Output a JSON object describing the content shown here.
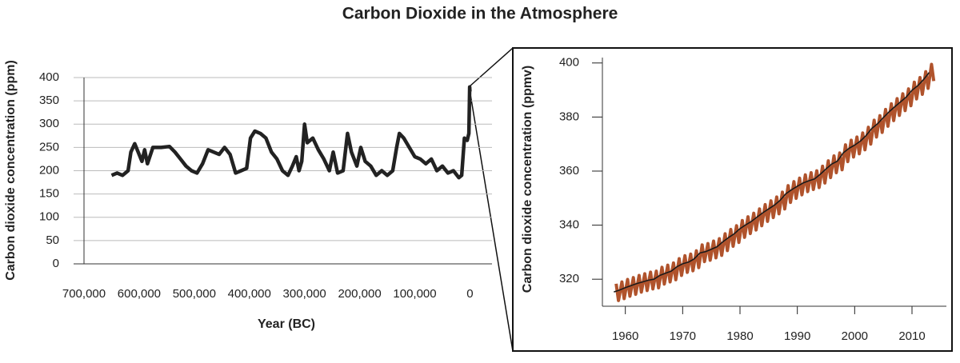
{
  "title": "Carbon Dioxide in the Atmosphere",
  "chart_data": [
    {
      "type": "line",
      "xlabel": "Year (BC)",
      "ylabel": "Carbon dioxide concentration (ppm)",
      "xlim": [
        700000,
        -40000
      ],
      "ylim": [
        0,
        400
      ],
      "xticks": [
        {
          "value": 700000,
          "label": "700,000"
        },
        {
          "value": 600000,
          "label": "600,000"
        },
        {
          "value": 500000,
          "label": "500,000"
        },
        {
          "value": 400000,
          "label": "400,000"
        },
        {
          "value": 300000,
          "label": "300,000"
        },
        {
          "value": 200000,
          "label": "200,000"
        },
        {
          "value": 100000,
          "label": "100,000"
        },
        0
      ],
      "yticks": [
        0,
        50,
        100,
        150,
        200,
        250,
        300,
        350,
        400
      ],
      "grid": true,
      "series": [
        {
          "color": "#222222",
          "x": [
            650000,
            640000,
            630000,
            620000,
            615000,
            608000,
            600000,
            595000,
            590000,
            585000,
            575000,
            560000,
            545000,
            535000,
            525000,
            515000,
            505000,
            495000,
            485000,
            475000,
            465000,
            455000,
            445000,
            435000,
            425000,
            415000,
            405000,
            398000,
            390000,
            380000,
            370000,
            360000,
            350000,
            340000,
            330000,
            322000,
            315000,
            310000,
            305000,
            300000,
            295000,
            285000,
            275000,
            265000,
            255000,
            248000,
            240000,
            230000,
            222000,
            215000,
            205000,
            198000,
            190000,
            180000,
            170000,
            160000,
            150000,
            140000,
            133000,
            128000,
            120000,
            110000,
            100000,
            90000,
            80000,
            70000,
            60000,
            50000,
            40000,
            30000,
            20000,
            15000,
            10000,
            5000,
            2000,
            500,
            0
          ],
          "values": [
            190,
            195,
            190,
            200,
            240,
            258,
            235,
            220,
            245,
            215,
            250,
            250,
            252,
            240,
            225,
            210,
            200,
            195,
            215,
            245,
            240,
            235,
            250,
            235,
            195,
            200,
            205,
            270,
            285,
            280,
            270,
            240,
            225,
            200,
            190,
            210,
            230,
            200,
            220,
            300,
            260,
            270,
            245,
            225,
            200,
            240,
            195,
            200,
            280,
            240,
            210,
            250,
            220,
            210,
            190,
            200,
            190,
            200,
            250,
            280,
            270,
            250,
            230,
            225,
            215,
            225,
            200,
            210,
            195,
            200,
            185,
            190,
            270,
            265,
            280,
            380,
            370
          ]
        }
      ]
    },
    {
      "type": "line",
      "ylabel": "Carbon dioxide concentration (ppmv)",
      "xlim": [
        1956,
        2016
      ],
      "ylim": [
        310,
        402
      ],
      "xticks": [
        1960,
        1970,
        1980,
        1990,
        2000,
        2010
      ],
      "yticks": [
        320,
        340,
        360,
        380,
        400
      ],
      "grid": false,
      "series": [
        {
          "color": "#b0532c",
          "width": 4,
          "x": [
            1958.4,
            1958.8,
            1959.4,
            1959.8,
            1960.4,
            1960.8,
            1961.4,
            1961.8,
            1962.4,
            1962.8,
            1963.4,
            1963.8,
            1964.4,
            1964.8,
            1965.4,
            1965.8,
            1966.4,
            1966.8,
            1967.4,
            1967.8,
            1968.4,
            1968.8,
            1969.4,
            1969.8,
            1970.4,
            1970.8,
            1971.4,
            1971.8,
            1972.4,
            1972.8,
            1973.4,
            1973.8,
            1974.4,
            1974.8,
            1975.4,
            1975.8,
            1976.4,
            1976.8,
            1977.4,
            1977.8,
            1978.4,
            1978.8,
            1979.4,
            1979.8,
            1980.4,
            1980.8,
            1981.4,
            1981.8,
            1982.4,
            1982.8,
            1983.4,
            1983.8,
            1984.4,
            1984.8,
            1985.4,
            1985.8,
            1986.4,
            1986.8,
            1987.4,
            1987.8,
            1988.4,
            1988.8,
            1989.4,
            1989.8,
            1990.4,
            1990.8,
            1991.4,
            1991.8,
            1992.4,
            1992.8,
            1993.4,
            1993.8,
            1994.4,
            1994.8,
            1995.4,
            1995.8,
            1996.4,
            1996.8,
            1997.4,
            1997.8,
            1998.4,
            1998.8,
            1999.4,
            1999.8,
            2000.4,
            2000.8,
            2001.4,
            2001.8,
            2002.4,
            2002.8,
            2003.4,
            2003.8,
            2004.4,
            2004.8,
            2005.4,
            2005.8,
            2006.4,
            2006.8,
            2007.4,
            2007.8,
            2008.4,
            2008.8,
            2009.4,
            2009.8,
            2010.4,
            2010.8,
            2011.4,
            2011.8,
            2012.4,
            2012.8,
            2013.4,
            2013.8
          ],
          "values": [
            318.3,
            312.1,
            319.0,
            312.8,
            319.9,
            313.7,
            320.6,
            314.4,
            321.4,
            315.2,
            322.0,
            315.8,
            322.6,
            316.4,
            323.0,
            316.8,
            324.4,
            318.2,
            325.2,
            319.0,
            326.0,
            319.8,
            327.6,
            321.4,
            328.7,
            322.5,
            329.3,
            323.1,
            330.5,
            324.3,
            332.7,
            326.5,
            333.2,
            327.0,
            334.1,
            327.9,
            335.0,
            328.8,
            336.8,
            330.6,
            338.4,
            332.2,
            339.8,
            333.6,
            341.7,
            335.5,
            343.1,
            336.9,
            344.4,
            338.2,
            346.0,
            339.8,
            347.6,
            341.4,
            349.0,
            342.8,
            350.4,
            344.2,
            352.2,
            346.0,
            354.6,
            348.4,
            356.1,
            349.9,
            357.4,
            351.2,
            358.6,
            352.4,
            359.4,
            353.2,
            360.1,
            353.9,
            361.8,
            355.6,
            363.8,
            357.6,
            365.6,
            359.4,
            366.7,
            360.5,
            369.7,
            363.5,
            371.4,
            365.2,
            372.6,
            366.4,
            374.1,
            367.9,
            376.2,
            370.0,
            378.8,
            372.6,
            380.5,
            374.3,
            382.8,
            376.6,
            384.9,
            378.7,
            386.8,
            380.6,
            388.6,
            382.4,
            390.4,
            384.2,
            392.9,
            386.7,
            394.6,
            388.4,
            396.8,
            390.6,
            399.5,
            393.3
          ]
        },
        {
          "color": "#1a1a1a",
          "width": 1.6,
          "x": [
            1958,
            1959,
            1960,
            1961,
            1962,
            1963,
            1964,
            1965,
            1966,
            1967,
            1968,
            1969,
            1970,
            1971,
            1972,
            1973,
            1974,
            1975,
            1976,
            1977,
            1978,
            1979,
            1980,
            1981,
            1982,
            1983,
            1984,
            1985,
            1986,
            1987,
            1988,
            1989,
            1990,
            1991,
            1992,
            1993,
            1994,
            1995,
            1996,
            1997,
            1998,
            1999,
            2000,
            2001,
            2002,
            2003,
            2004,
            2005,
            2006,
            2007,
            2008,
            2009,
            2010,
            2011,
            2012,
            2013
          ],
          "values": [
            315.3,
            316.0,
            316.9,
            317.6,
            318.4,
            319.0,
            319.6,
            320.0,
            321.4,
            322.2,
            323.0,
            324.6,
            325.7,
            326.3,
            327.5,
            329.7,
            330.2,
            331.1,
            332.0,
            333.8,
            335.4,
            336.8,
            338.7,
            340.1,
            341.4,
            343.0,
            344.6,
            346.0,
            347.4,
            349.2,
            351.6,
            353.1,
            354.4,
            355.6,
            356.4,
            357.1,
            358.8,
            360.8,
            362.6,
            363.7,
            366.7,
            368.4,
            369.6,
            371.1,
            373.2,
            375.8,
            377.5,
            379.8,
            381.9,
            383.8,
            385.6,
            387.4,
            389.9,
            391.6,
            393.8,
            396.5
          ]
        }
      ]
    }
  ]
}
